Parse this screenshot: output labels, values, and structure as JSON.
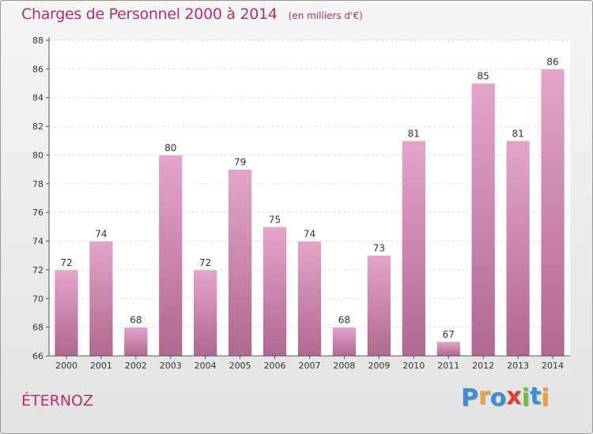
{
  "header": {
    "title": "Charges de Personnel 2000 à 2014",
    "subtitle": "(en milliers d'€)"
  },
  "footer": {
    "commune": "ÉTERNOZ",
    "logo": {
      "letters": [
        "P",
        "r",
        "o",
        "x",
        "i",
        "t",
        "i"
      ],
      "colors": [
        "#3a8fd8",
        "#e8a23a",
        "#3a8fd8",
        "#e23b3b",
        "#6cbf3a",
        "#3a8fd8",
        "#e8a23a"
      ]
    }
  },
  "chart_data": {
    "type": "bar",
    "title": "Charges de Personnel 2000 à 2014",
    "subtitle": "(en milliers d'€)",
    "categories": [
      "2000",
      "2001",
      "2002",
      "2003",
      "2004",
      "2005",
      "2006",
      "2007",
      "2008",
      "2009",
      "2010",
      "2011",
      "2012",
      "2013",
      "2014"
    ],
    "values": [
      72,
      74,
      68,
      80,
      72,
      79,
      75,
      74,
      68,
      73,
      81,
      67,
      85,
      81,
      86
    ],
    "ylim": [
      66,
      88
    ],
    "yticks": [
      66,
      68,
      70,
      72,
      74,
      76,
      78,
      80,
      82,
      84,
      86,
      88
    ],
    "grid": true,
    "bar_color_top": "#e4a5cb",
    "bar_color_bottom": "#b0688f",
    "title_color": "#b0306e"
  }
}
